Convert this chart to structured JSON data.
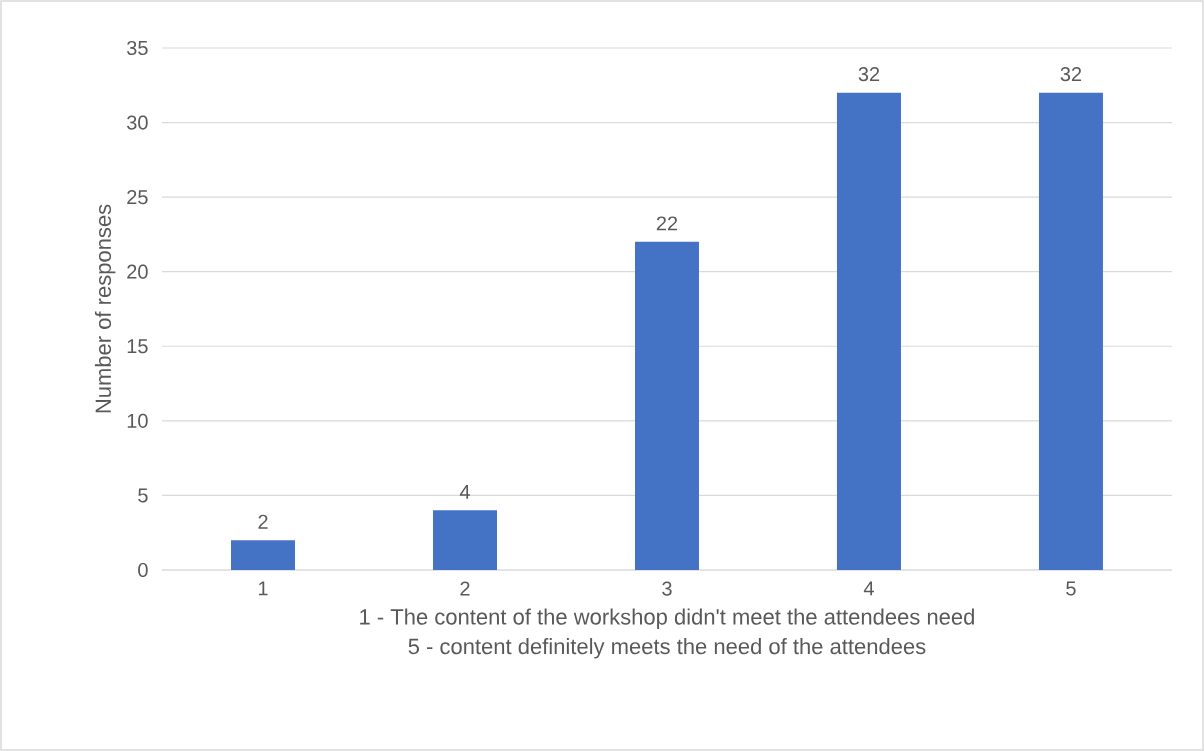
{
  "chart_data": {
    "type": "bar",
    "categories": [
      "1",
      "2",
      "3",
      "4",
      "5"
    ],
    "values": [
      2,
      4,
      22,
      32,
      32
    ],
    "color": "#4472c4",
    "ylabel": "Number of responses",
    "xlabel": "1 - The content of the workshop didn't meet the attendees need",
    "annotations": [
      "5 - content definitely meets the need of the attendees"
    ],
    "ylim": [
      0,
      35
    ],
    "yticks": [
      0,
      5,
      10,
      15,
      20,
      25,
      30,
      35
    ],
    "grid": "y",
    "data_labels": true
  }
}
